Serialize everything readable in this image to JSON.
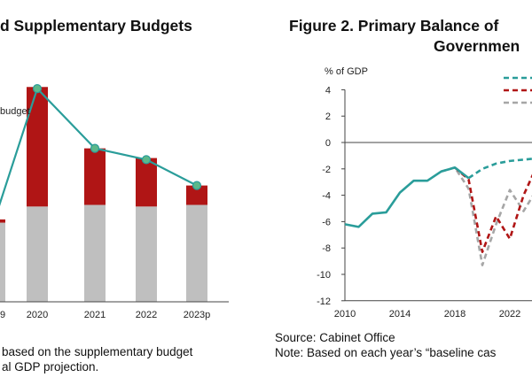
{
  "left_panel": {
    "title": "d Supplementary Budgets",
    "label": "budget",
    "notes": [
      "based on the supplementary budget",
      "al GDP projection."
    ]
  },
  "right_panel": {
    "title_line1": "Figure 2. Primary Balance of",
    "title_line2": "Governmen",
    "ylabel": "% of GDP",
    "source": "Source: Cabinet Office",
    "note": "Note: Based on each year’s “baseline cas"
  },
  "colors": {
    "teal": "#2a9d9a",
    "red": "#b01515",
    "gray": "#bfbfbf",
    "gray_dash": "#a6a6a6"
  },
  "chart_data": [
    {
      "type": "bar",
      "stacked": true,
      "categories": [
        "9",
        "2020",
        "2021",
        "2022",
        "2023p"
      ],
      "series": [
        {
          "values": [
            2.45,
            2.95,
            3.0,
            2.95,
            3.0
          ]
        },
        {
          "values": [
            0.1,
            3.7,
            1.75,
            1.5,
            0.6
          ]
        }
      ],
      "line_values": [
        2.55,
        6.6,
        4.75,
        4.4,
        3.6
      ],
      "ylim": [
        0,
        8
      ]
    },
    {
      "type": "line",
      "ylabel": "% of GDP",
      "x_ticks": [
        2010,
        2014,
        2018,
        2022
      ],
      "y_ticks": [
        4,
        2,
        0,
        -2,
        -4,
        -6,
        -8,
        -10,
        -12
      ],
      "ylim": [
        -12,
        4
      ],
      "series": [
        {
          "style": "solid-teal",
          "x": [
            2010,
            2011,
            2012,
            2013,
            2014,
            2015,
            2016,
            2017,
            2018,
            2019
          ],
          "y": [
            -6.2,
            -6.4,
            -5.4,
            -5.3,
            -3.8,
            -2.9,
            -2.9,
            -2.2,
            -1.9,
            -2.7
          ]
        },
        {
          "style": "dashed-teal",
          "x": [
            2019,
            2020,
            2021,
            2022,
            2023,
            2024
          ],
          "y": [
            -2.7,
            -2.0,
            -1.6,
            -1.4,
            -1.3,
            -1.2
          ]
        },
        {
          "style": "dashed-red",
          "x": [
            2018,
            2019,
            2020,
            2021,
            2022,
            2023,
            2024
          ],
          "y": [
            -1.9,
            -2.8,
            -8.3,
            -5.6,
            -7.3,
            -4.0,
            -1.7
          ]
        },
        {
          "style": "dashed-gray",
          "x": [
            2017,
            2018,
            2019,
            2020,
            2021,
            2022,
            2023,
            2024
          ],
          "y": [
            -2.2,
            -1.9,
            -3.5,
            -9.3,
            -6.2,
            -3.6,
            -5.2,
            -3.5
          ]
        }
      ]
    }
  ]
}
